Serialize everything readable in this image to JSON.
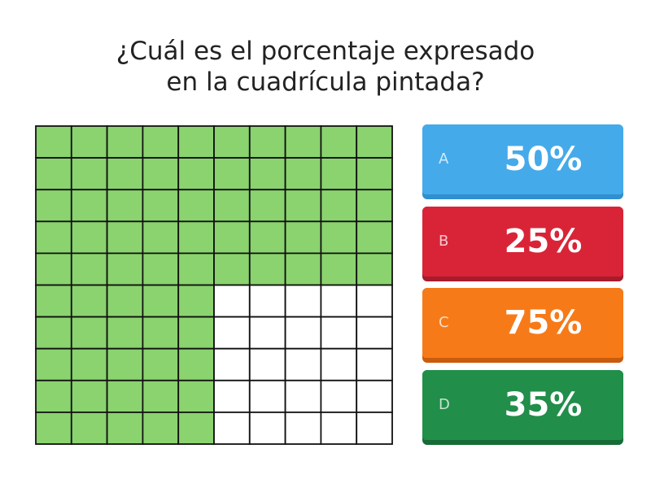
{
  "question": {
    "lines": [
      "¿Cuál es el porcentaje expresado",
      "en la cuadrícula pintada?"
    ]
  },
  "options": [
    {
      "letter": "A",
      "text": "50%"
    },
    {
      "letter": "B",
      "text": "25%"
    },
    {
      "letter": "C",
      "text": "75%"
    },
    {
      "letter": "D",
      "text": "35%"
    }
  ]
}
